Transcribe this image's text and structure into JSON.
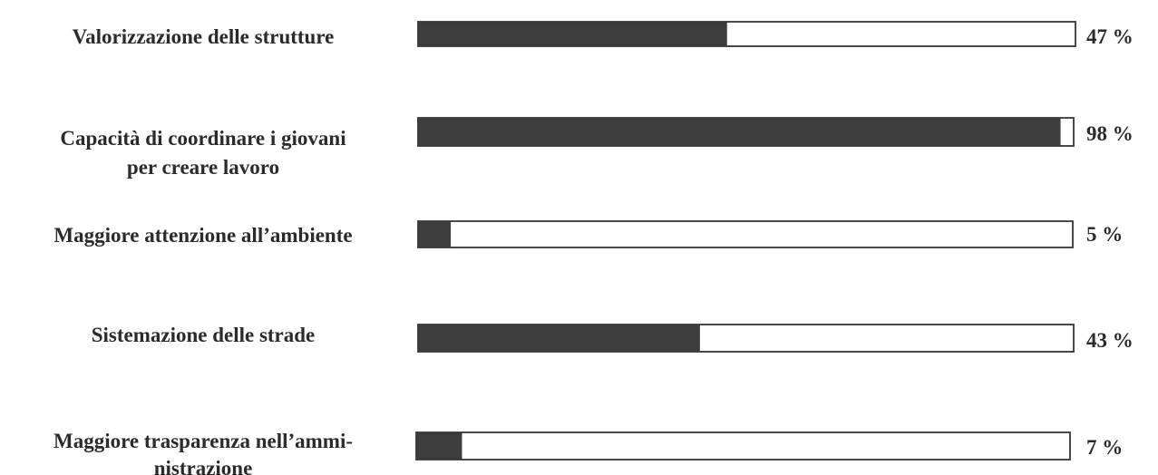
{
  "chart_data": {
    "type": "bar",
    "orientation": "horizontal",
    "categories": [
      [
        "Valorizzazione delle strutture"
      ],
      [
        "Capacità di coordinare i giovani",
        "per creare lavoro"
      ],
      [
        "Maggiore attenzione all’ambiente"
      ],
      [
        "Sistemazione delle strade"
      ],
      [
        "Maggiore trasparenza nell’ammi-",
        "nistrazione"
      ]
    ],
    "values": [
      47,
      98,
      5,
      43,
      7
    ],
    "value_labels": [
      "47 %",
      "98 %",
      "5 %",
      "43 %",
      "7 %"
    ],
    "xlim": [
      0,
      100
    ],
    "grid": false,
    "legend": "none",
    "colors": {
      "fill": "#3d3d3d",
      "track": "#ffffff",
      "border": "#3a3a3a",
      "text": "#2b2b2b"
    }
  }
}
